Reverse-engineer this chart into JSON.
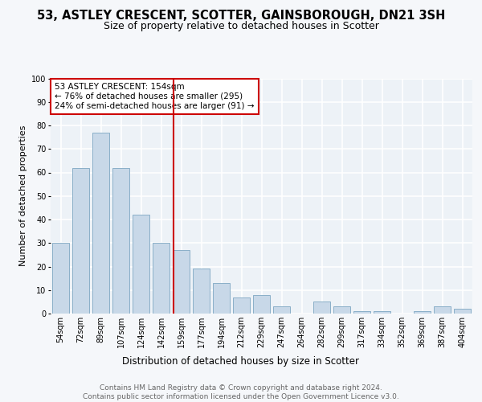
{
  "title1": "53, ASTLEY CRESCENT, SCOTTER, GAINSBOROUGH, DN21 3SH",
  "title2": "Size of property relative to detached houses in Scotter",
  "xlabel": "Distribution of detached houses by size in Scotter",
  "ylabel": "Number of detached properties",
  "categories": [
    "54sqm",
    "72sqm",
    "89sqm",
    "107sqm",
    "124sqm",
    "142sqm",
    "159sqm",
    "177sqm",
    "194sqm",
    "212sqm",
    "229sqm",
    "247sqm",
    "264sqm",
    "282sqm",
    "299sqm",
    "317sqm",
    "334sqm",
    "352sqm",
    "369sqm",
    "387sqm",
    "404sqm"
  ],
  "values": [
    30,
    62,
    77,
    62,
    42,
    30,
    27,
    19,
    13,
    7,
    8,
    3,
    0,
    5,
    3,
    1,
    1,
    0,
    1,
    3,
    2
  ],
  "bar_color": "#c8d8e8",
  "bar_edge_color": "#8aafc8",
  "vline_color": "#cc0000",
  "vline_pos": 5.6,
  "annotation_text": "53 ASTLEY CRESCENT: 154sqm\n← 76% of detached houses are smaller (295)\n24% of semi-detached houses are larger (91) →",
  "annotation_box_color": "#cc0000",
  "ylim": [
    0,
    100
  ],
  "yticks": [
    0,
    10,
    20,
    30,
    40,
    50,
    60,
    70,
    80,
    90,
    100
  ],
  "bg_color": "#edf2f7",
  "grid_color": "#ffffff",
  "fig_color": "#f5f7fa",
  "footer_text": "Contains HM Land Registry data © Crown copyright and database right 2024.\nContains public sector information licensed under the Open Government Licence v3.0.",
  "title1_fontsize": 10.5,
  "title2_fontsize": 9,
  "xlabel_fontsize": 8.5,
  "ylabel_fontsize": 8,
  "tick_fontsize": 7,
  "footer_fontsize": 6.5,
  "annot_fontsize": 7.5
}
